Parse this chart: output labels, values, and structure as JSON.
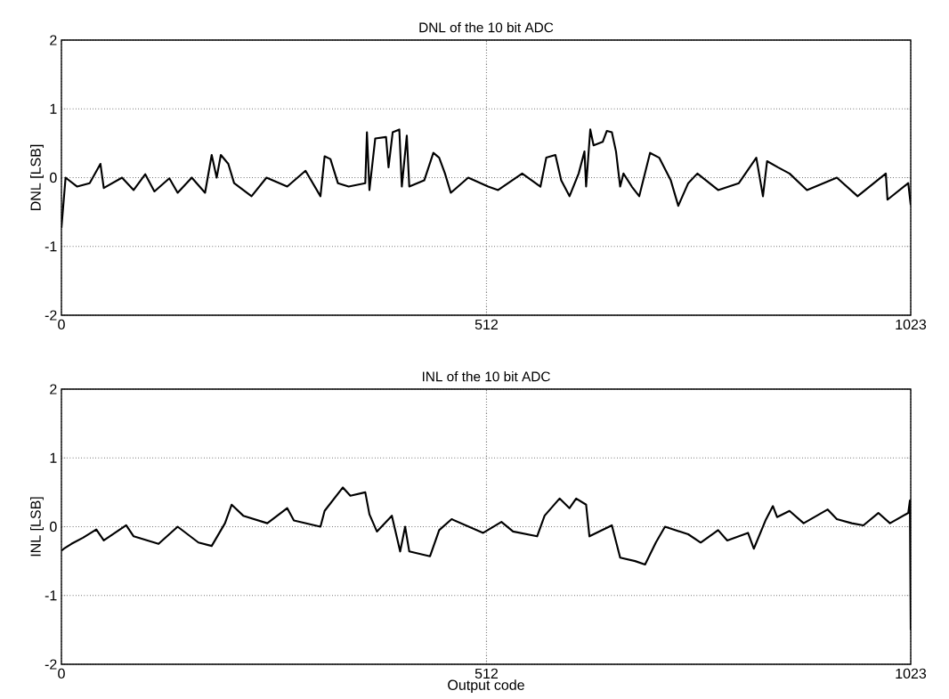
{
  "chart_data": [
    {
      "type": "line",
      "title": "DNL of the 10 bit ADC",
      "ylabel": "DNL [LSB]",
      "xlim": [
        0,
        1023
      ],
      "ylim": [
        -2,
        2
      ],
      "xticks": [
        0,
        512,
        1023
      ],
      "yticks": [
        -2,
        -1,
        0,
        1,
        2
      ],
      "grid": true,
      "line_style": "solid",
      "x": [
        0,
        5,
        19,
        34,
        47,
        51,
        73,
        87,
        101,
        112,
        130,
        140,
        157,
        173,
        181,
        187,
        192,
        201,
        208,
        229,
        247,
        272,
        294,
        312,
        317,
        324,
        333,
        346,
        366,
        368,
        371,
        378,
        391,
        394,
        399,
        407,
        410,
        416,
        419,
        437,
        448,
        455,
        462,
        469,
        490,
        514,
        526,
        555,
        577,
        584,
        595,
        602,
        612,
        623,
        630,
        632,
        637,
        641,
        652,
        657,
        663,
        668,
        673,
        677,
        687,
        696,
        709,
        720,
        734,
        743,
        755,
        766,
        791,
        816,
        837,
        845,
        850,
        863,
        877,
        898,
        934,
        959,
        993,
        995,
        1020,
        1023
      ],
      "series": [
        {
          "color": "#000000",
          "values": [
            -0.73,
            0.0,
            -0.13,
            -0.08,
            0.2,
            -0.15,
            0.0,
            -0.18,
            0.05,
            -0.2,
            -0.01,
            -0.22,
            0.0,
            -0.22,
            0.33,
            0.0,
            0.33,
            0.2,
            -0.08,
            -0.27,
            0.0,
            -0.13,
            0.1,
            -0.27,
            0.31,
            0.27,
            -0.08,
            -0.13,
            -0.08,
            0.66,
            -0.18,
            0.57,
            0.59,
            0.15,
            0.66,
            0.7,
            -0.13,
            0.61,
            -0.13,
            -0.04,
            0.36,
            0.29,
            0.06,
            -0.22,
            0.0,
            -0.13,
            -0.18,
            0.06,
            -0.13,
            0.29,
            0.33,
            -0.04,
            -0.27,
            0.06,
            0.38,
            -0.13,
            0.7,
            0.47,
            0.52,
            0.68,
            0.66,
            0.38,
            -0.13,
            0.06,
            -0.13,
            -0.27,
            0.36,
            0.29,
            -0.04,
            -0.41,
            -0.08,
            0.06,
            -0.18,
            -0.08,
            0.29,
            -0.27,
            0.24,
            0.15,
            0.06,
            -0.18,
            0.0,
            -0.27,
            0.06,
            -0.32,
            -0.08,
            -0.4
          ]
        }
      ]
    },
    {
      "type": "line",
      "title": "INL of the 10 bit ADC",
      "xlabel": "Output code",
      "ylabel": "INL [LSB]",
      "xlim": [
        0,
        1023
      ],
      "ylim": [
        -2,
        2
      ],
      "xticks": [
        0,
        512,
        1023
      ],
      "yticks": [
        -2,
        -1,
        0,
        1,
        2
      ],
      "grid": true,
      "line_style": "solid",
      "x": [
        0,
        3,
        12,
        26,
        42,
        51,
        78,
        87,
        117,
        140,
        165,
        181,
        197,
        205,
        219,
        248,
        272,
        280,
        312,
        317,
        339,
        348,
        366,
        371,
        380,
        398,
        408,
        414,
        419,
        444,
        455,
        470,
        508,
        530,
        544,
        573,
        582,
        600,
        612,
        620,
        632,
        636,
        663,
        673,
        691,
        703,
        716,
        727,
        755,
        770,
        791,
        802,
        827,
        834,
        848,
        857,
        862,
        877,
        894,
        923,
        934,
        952,
        966,
        984,
        998,
        1020,
        1022,
        1023
      ],
      "series": [
        {
          "color": "#000000",
          "values": [
            -0.35,
            -0.32,
            -0.25,
            -0.16,
            -0.04,
            -0.2,
            0.02,
            -0.14,
            -0.25,
            0.0,
            -0.23,
            -0.28,
            0.05,
            0.32,
            0.16,
            0.05,
            0.27,
            0.09,
            0.0,
            0.23,
            0.57,
            0.45,
            0.5,
            0.18,
            -0.07,
            0.16,
            -0.36,
            0.0,
            -0.36,
            -0.43,
            -0.05,
            0.11,
            -0.09,
            0.07,
            -0.07,
            -0.14,
            0.16,
            0.41,
            0.27,
            0.41,
            0.32,
            -0.14,
            0.02,
            -0.45,
            -0.5,
            -0.55,
            -0.23,
            0.0,
            -0.11,
            -0.23,
            -0.05,
            -0.2,
            -0.09,
            -0.32,
            0.09,
            0.3,
            0.14,
            0.23,
            0.05,
            0.25,
            0.11,
            0.05,
            0.02,
            0.2,
            0.05,
            0.2,
            0.38,
            -1.5
          ]
        }
      ]
    }
  ]
}
